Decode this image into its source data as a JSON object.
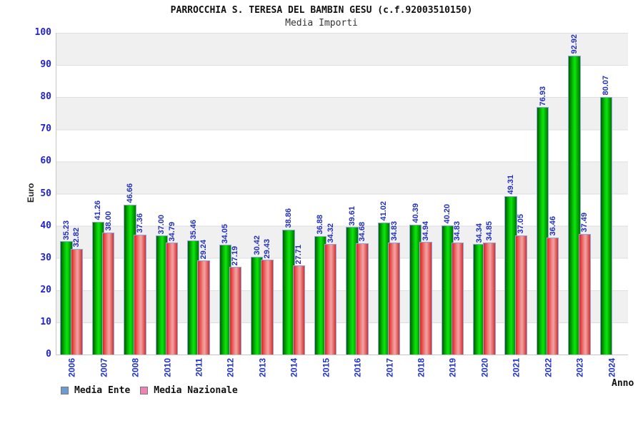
{
  "header": {
    "title": "PARROCCHIA S. TERESA DEL BAMBIN GESU (c.f.92003510150)",
    "subtitle": "Media Importi"
  },
  "axis": {
    "y_label": "Euro",
    "x_label": "Anno",
    "yticks": [
      0,
      10,
      20,
      30,
      40,
      50,
      60,
      70,
      80,
      90,
      100
    ]
  },
  "legend": {
    "items": [
      {
        "label": "Media Ente",
        "swatch_color": "#6b9bd2"
      },
      {
        "label": "Media Nazionale",
        "swatch_color": "#ee82b4"
      }
    ]
  },
  "colors": {
    "bar_ente_main": "#00cc00",
    "bar_nazionale_main": "#e64040",
    "bar_outline": "#8fa8dc",
    "value_label": "#2330bb",
    "tick_label": "#2222dd",
    "band_gray": "#f0f0f0"
  },
  "chart_data": {
    "type": "bar",
    "title": "PARROCCHIA S. TERESA DEL BAMBIN GESU (c.f.92003510150)",
    "subtitle": "Media Importi",
    "xlabel": "Anno",
    "ylabel": "Euro",
    "ylim": [
      0,
      100
    ],
    "grid": "horizontal-bands",
    "legend_position": "bottom-left",
    "categories": [
      "2006",
      "2007",
      "2008",
      "2010",
      "2011",
      "2012",
      "2013",
      "2014",
      "2015",
      "2016",
      "2017",
      "2018",
      "2019",
      "2020",
      "2021",
      "2022",
      "2023",
      "2024"
    ],
    "series": [
      {
        "name": "Media Ente",
        "values": [
          35.23,
          41.26,
          46.66,
          37.0,
          35.46,
          34.05,
          30.42,
          38.86,
          36.88,
          39.61,
          41.02,
          40.39,
          40.2,
          34.34,
          49.31,
          76.93,
          92.92,
          80.07
        ]
      },
      {
        "name": "Media Nazionale",
        "values": [
          32.82,
          38.0,
          37.36,
          34.79,
          29.24,
          27.19,
          29.43,
          27.71,
          34.32,
          34.68,
          34.83,
          34.94,
          34.83,
          34.85,
          37.05,
          36.46,
          37.49,
          null
        ]
      }
    ]
  }
}
